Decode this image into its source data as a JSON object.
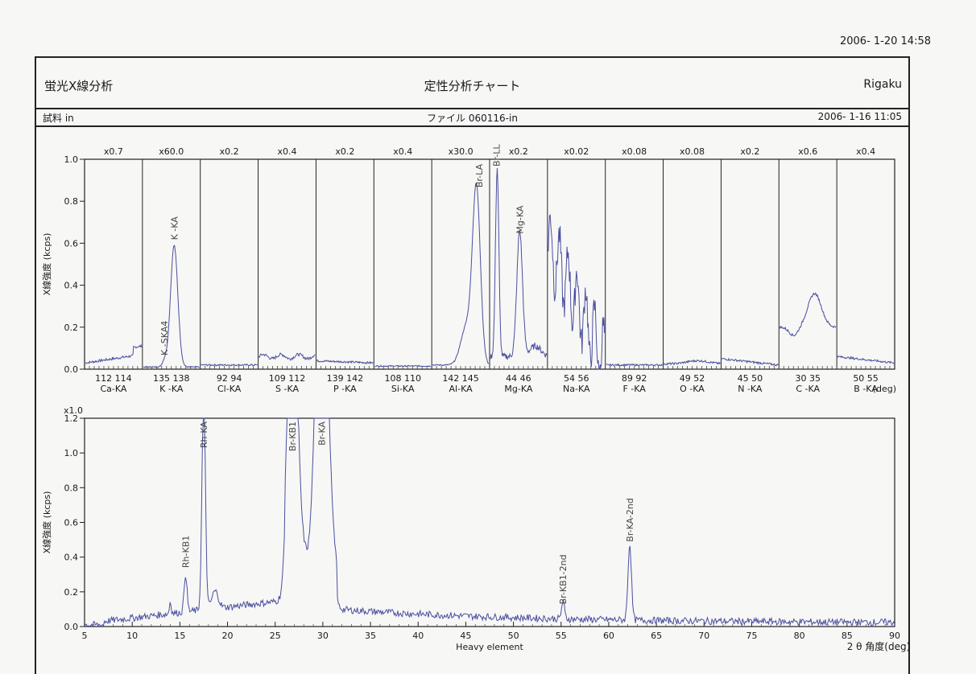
{
  "header": {
    "print_datetime": "2006- 1-20 14:58",
    "app_name": "蛍光X線分析",
    "title": "定性分析チャート",
    "vendor": "Rigaku",
    "sample_label": "試料 in",
    "file_label": "ファイル 060116-in",
    "measure_datetime": "2006- 1-16 11:05"
  },
  "chart_data": [
    {
      "type": "line",
      "name": "light-elements",
      "ylabel": "X線強度 (kcps)",
      "ylim": [
        0,
        1.0
      ],
      "yticks": [
        "0.0",
        "0.2",
        "0.4",
        "0.6",
        "0.8",
        "1.0"
      ],
      "x_unit_label": "(deg)",
      "panels": [
        {
          "line": "Ca-KA",
          "scale": "x0.7",
          "ticks": [
            "112",
            "114"
          ]
        },
        {
          "line": "K -KA",
          "scale": "x60.0",
          "ticks": [
            "135",
            "138"
          ],
          "peaks": [
            {
              "label": "K -KA",
              "y": 0.6
            },
            {
              "label": "K -SKA4",
              "y": 0.05
            }
          ]
        },
        {
          "line": "Cl-KA",
          "scale": "x0.2",
          "ticks": [
            "92",
            "94"
          ]
        },
        {
          "line": "S -KA",
          "scale": "x0.4",
          "ticks": [
            "109",
            "112"
          ]
        },
        {
          "line": "P -KA",
          "scale": "x0.2",
          "ticks": [
            "139",
            "142"
          ]
        },
        {
          "line": "Si-KA",
          "scale": "x0.4",
          "ticks": [
            "108",
            "110"
          ]
        },
        {
          "line": "Al-KA",
          "scale": "x30.0",
          "ticks": [
            "142",
            "145"
          ],
          "peaks": [
            {
              "label": "Br-LA",
              "y": 0.85
            }
          ]
        },
        {
          "line": "Mg-KA",
          "scale": "x0.2",
          "ticks": [
            "44",
            "46"
          ],
          "peaks": [
            {
              "label": "Br-LL",
              "y": 0.95
            },
            {
              "label": "Mg-KA",
              "y": 0.63
            }
          ]
        },
        {
          "line": "Na-KA",
          "scale": "x0.02",
          "ticks": [
            "54",
            "56"
          ]
        },
        {
          "line": "F -KA",
          "scale": "x0.08",
          "ticks": [
            "89",
            "92"
          ]
        },
        {
          "line": "O -KA",
          "scale": "x0.08",
          "ticks": [
            "49",
            "52"
          ]
        },
        {
          "line": "N -KA",
          "scale": "x0.2",
          "ticks": [
            "45",
            "50"
          ]
        },
        {
          "line": "C -KA",
          "scale": "x0.6",
          "ticks": [
            "30",
            "35"
          ]
        },
        {
          "line": "B -KA",
          "scale": "x0.4",
          "ticks": [
            "50",
            "55"
          ]
        }
      ]
    },
    {
      "type": "line",
      "name": "heavy-elements",
      "scale": "x1.0",
      "xlabel": "Heavy element",
      "x_axis_label": "2 θ 角度(deg)",
      "ylabel": "X線強度 (kcps)",
      "xlim": [
        5,
        90
      ],
      "ylim": [
        0,
        1.2
      ],
      "xticks": [
        "5",
        "10",
        "15",
        "20",
        "25",
        "30",
        "35",
        "40",
        "45",
        "50",
        "55",
        "60",
        "65",
        "70",
        "75",
        "80",
        "85",
        "90"
      ],
      "yticks": [
        "0.0",
        "0.2",
        "0.4",
        "0.6",
        "0.8",
        "1.0",
        "1.2"
      ],
      "peaks": [
        {
          "label": "Rh-KB1",
          "x": 15.6,
          "y": 0.31
        },
        {
          "label": "Rh-KA",
          "x": 17.5,
          "y": 1.0
        },
        {
          "label": "Br-KB1",
          "x": 26.8,
          "y": 1.2
        },
        {
          "label": "Br-KA",
          "x": 29.9,
          "y": 1.2
        },
        {
          "label": "Br-KB1-2nd",
          "x": 55.2,
          "y": 0.1
        },
        {
          "label": "Br-KA-2nd",
          "x": 62.2,
          "y": 0.46
        }
      ]
    }
  ]
}
